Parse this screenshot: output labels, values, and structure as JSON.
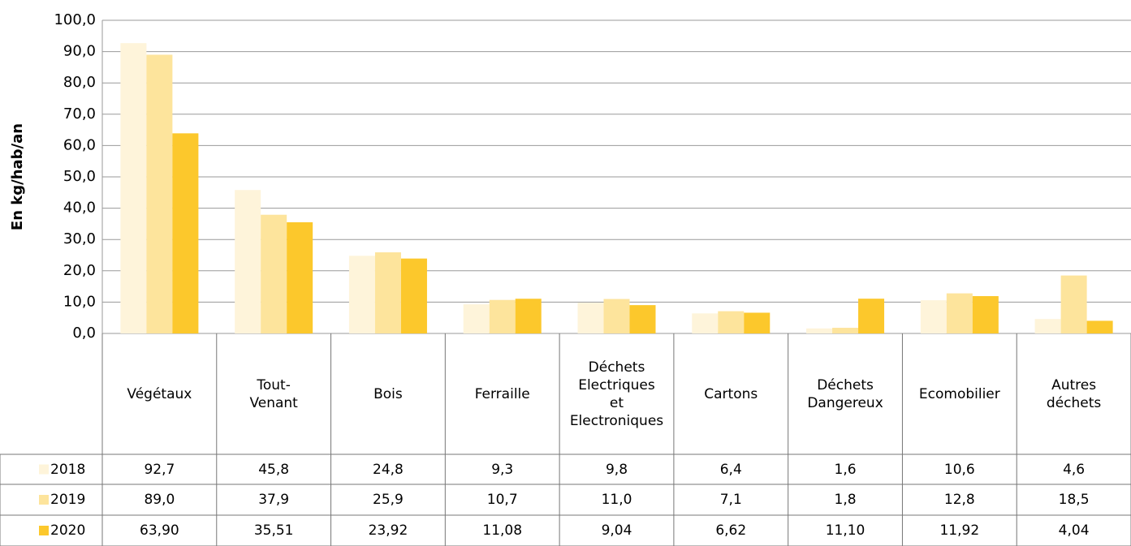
{
  "chart_data": {
    "type": "bar",
    "y_label": "En kg/hab/an",
    "categories": [
      "Végétaux",
      "Tout-\nVenant",
      "Bois",
      "Ferraille",
      "Déchets\nElectriques\net\nElectroniques",
      "Cartons",
      "Déchets\nDangereux",
      "Ecomobilier",
      "Autres\ndéchets"
    ],
    "series": [
      {
        "name": "2018",
        "color": "#fef4da",
        "values": [
          92.7,
          45.8,
          24.8,
          9.3,
          9.8,
          6.4,
          1.6,
          10.6,
          4.6
        ],
        "value_labels": [
          "92,7",
          "45,8",
          "24,8",
          "9,3",
          "9,8",
          "6,4",
          "1,6",
          "10,6",
          "4,6"
        ]
      },
      {
        "name": "2019",
        "color": "#fde49c",
        "values": [
          89.0,
          37.9,
          25.9,
          10.7,
          11.0,
          7.1,
          1.8,
          12.8,
          18.5
        ],
        "value_labels": [
          "89,0",
          "37,9",
          "25,9",
          "10,7",
          "11,0",
          "7,1",
          "1,8",
          "12,8",
          "18,5"
        ]
      },
      {
        "name": "2020",
        "color": "#fcc82c",
        "values": [
          63.9,
          35.51,
          23.92,
          11.08,
          9.04,
          6.62,
          11.1,
          11.92,
          4.04
        ],
        "value_labels": [
          "63,90",
          "35,51",
          "23,92",
          "11,08",
          "9,04",
          "6,62",
          "11,10",
          "11,92",
          "4,04"
        ]
      }
    ],
    "ylim": [
      0,
      100
    ],
    "yticks": [
      {
        "value": 0,
        "label": "0,0"
      },
      {
        "value": 10,
        "label": "10,0"
      },
      {
        "value": 20,
        "label": "20,0"
      },
      {
        "value": 30,
        "label": "30,0"
      },
      {
        "value": 40,
        "label": "40,0"
      },
      {
        "value": 50,
        "label": "50,0"
      },
      {
        "value": 60,
        "label": "60,0"
      },
      {
        "value": 70,
        "label": "70,0"
      },
      {
        "value": 80,
        "label": "80,0"
      },
      {
        "value": 90,
        "label": "90,0"
      },
      {
        "value": 100,
        "label": "100,0"
      }
    ],
    "grid": true
  }
}
